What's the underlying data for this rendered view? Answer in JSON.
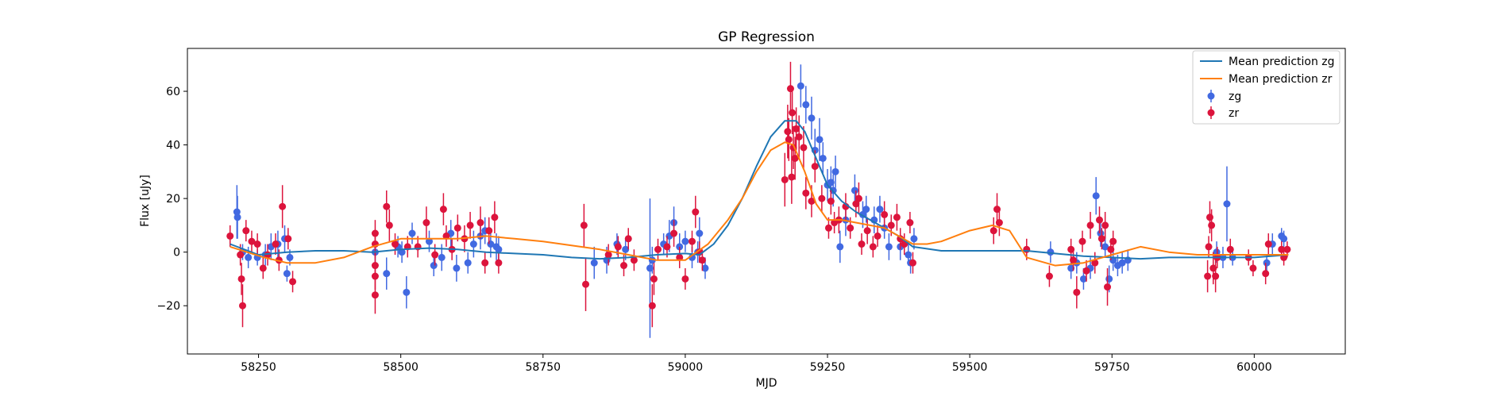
{
  "chart_data": {
    "type": "scatter",
    "title": "GP Regression",
    "xlabel": "MJD",
    "ylabel": "Flux [uJy]",
    "xlim": [
      58125,
      60160
    ],
    "ylim": [
      -38,
      76
    ],
    "xticks": [
      58250,
      58500,
      58750,
      59000,
      59250,
      59500,
      59750,
      60000
    ],
    "yticks": [
      -20,
      0,
      20,
      40,
      60
    ],
    "grid": false,
    "legend_position": "top-right",
    "colors": {
      "mean_zg": "#1f77b4",
      "mean_zr": "#ff7f0e",
      "zg": "#4169e1",
      "zr": "#dc143c"
    },
    "lines": [
      {
        "name": "Mean prediction zg",
        "color": "#1f77b4",
        "x": [
          58200,
          58250,
          58300,
          58350,
          58400,
          58450,
          58500,
          58550,
          58600,
          58650,
          58700,
          58750,
          58800,
          58850,
          58900,
          58950,
          59000,
          59025,
          59050,
          59075,
          59100,
          59125,
          59150,
          59175,
          59195,
          59210,
          59230,
          59250,
          59275,
          59300,
          59325,
          59350,
          59375,
          59400,
          59450,
          59500,
          59550,
          59600,
          59650,
          59700,
          59750,
          59800,
          59850,
          59900,
          59950,
          60000,
          60060
        ],
        "y": [
          3,
          -1,
          0,
          0.5,
          0.5,
          0,
          1,
          1.5,
          1,
          0,
          -0.5,
          -1,
          -2,
          -2.5,
          -2,
          -1,
          -0.5,
          -1,
          3,
          10,
          20,
          32,
          43,
          49,
          49,
          45,
          35,
          25,
          19,
          15,
          12,
          9,
          6,
          2,
          0.5,
          0.5,
          0.5,
          0.5,
          -0.5,
          -1.5,
          -2,
          -2.5,
          -2,
          -2,
          -2,
          -2,
          -1
        ]
      },
      {
        "name": "Mean prediction zr",
        "color": "#ff7f0e",
        "x": [
          58200,
          58230,
          58260,
          58300,
          58350,
          58400,
          58450,
          58500,
          58550,
          58600,
          58650,
          58700,
          58750,
          58800,
          58850,
          58900,
          58950,
          59000,
          59040,
          59075,
          59100,
          59125,
          59150,
          59175,
          59190,
          59210,
          59230,
          59250,
          59275,
          59300,
          59325,
          59350,
          59375,
          59400,
          59425,
          59450,
          59500,
          59540,
          59570,
          59600,
          59650,
          59700,
          59750,
          59800,
          59850,
          59900,
          59950,
          60000,
          60060
        ],
        "y": [
          2,
          0,
          -2,
          -4,
          -4,
          -2,
          2,
          5,
          5,
          5,
          6,
          5,
          4,
          2.5,
          1,
          -1,
          -3,
          -3,
          3,
          12,
          20,
          30,
          38,
          41,
          40,
          30,
          18,
          12,
          12,
          11,
          10,
          9,
          6,
          3,
          3,
          4,
          8,
          10,
          8,
          -2,
          -5,
          -4,
          -1,
          2,
          0,
          -1,
          -1,
          -1,
          -1
        ]
      }
    ],
    "series": [
      {
        "name": "zg",
        "color": "#4169e1",
        "points": [
          [
            58212,
            15,
            10
          ],
          [
            58213,
            13,
            8
          ],
          [
            58222,
            0,
            3
          ],
          [
            58232,
            -2,
            4
          ],
          [
            58248,
            -2,
            3
          ],
          [
            58262,
            -1,
            4
          ],
          [
            58272,
            2,
            5
          ],
          [
            58284,
            3,
            5
          ],
          [
            58296,
            5,
            5
          ],
          [
            58300,
            -8,
            3
          ],
          [
            58305,
            -2,
            3
          ],
          [
            58455,
            0,
            4
          ],
          [
            58475,
            -8,
            6
          ],
          [
            58495,
            2,
            4
          ],
          [
            58502,
            0,
            4
          ],
          [
            58510,
            -15,
            6
          ],
          [
            58520,
            7,
            4
          ],
          [
            58550,
            4,
            4
          ],
          [
            58558,
            -5,
            4
          ],
          [
            58572,
            -2,
            5
          ],
          [
            58588,
            7,
            5
          ],
          [
            58598,
            -6,
            5
          ],
          [
            58618,
            -4,
            4
          ],
          [
            58628,
            3,
            5
          ],
          [
            58640,
            6,
            5
          ],
          [
            58648,
            8,
            5
          ],
          [
            58658,
            3,
            5
          ],
          [
            58668,
            2,
            5
          ],
          [
            58672,
            1,
            5
          ],
          [
            58840,
            -4,
            6
          ],
          [
            58862,
            -3,
            5
          ],
          [
            58880,
            3,
            4
          ],
          [
            58895,
            1,
            4
          ],
          [
            58938,
            -6,
            26
          ],
          [
            58942,
            -3,
            5
          ],
          [
            58962,
            3,
            4
          ],
          [
            58972,
            6,
            6
          ],
          [
            58980,
            11,
            6
          ],
          [
            58990,
            2,
            5
          ],
          [
            59000,
            4,
            4
          ],
          [
            59012,
            -2,
            4
          ],
          [
            59022,
            0,
            4
          ],
          [
            59025,
            7,
            6
          ],
          [
            59035,
            -6,
            4
          ],
          [
            59203,
            62,
            8
          ],
          [
            59212,
            55,
            7
          ],
          [
            59222,
            50,
            8
          ],
          [
            59228,
            38,
            8
          ],
          [
            59236,
            42,
            8
          ],
          [
            59242,
            35,
            6
          ],
          [
            59250,
            25,
            6
          ],
          [
            59256,
            26,
            6
          ],
          [
            59260,
            23,
            6
          ],
          [
            59264,
            30,
            6
          ],
          [
            59272,
            2,
            6
          ],
          [
            59282,
            12,
            6
          ],
          [
            59298,
            23,
            6
          ],
          [
            59312,
            14,
            5
          ],
          [
            59318,
            16,
            5
          ],
          [
            59332,
            12,
            5
          ],
          [
            59342,
            16,
            5
          ],
          [
            59350,
            9,
            4
          ],
          [
            59358,
            2,
            5
          ],
          [
            59378,
            2,
            5
          ],
          [
            59392,
            -1,
            4
          ],
          [
            59396,
            -4,
            4
          ],
          [
            59402,
            5,
            4
          ],
          [
            59642,
            0,
            4
          ],
          [
            59678,
            -6,
            4
          ],
          [
            59688,
            -4,
            4
          ],
          [
            59700,
            -10,
            4
          ],
          [
            59712,
            -6,
            4
          ],
          [
            59722,
            21,
            7
          ],
          [
            59730,
            7,
            5
          ],
          [
            59738,
            2,
            4
          ],
          [
            59745,
            -10,
            5
          ],
          [
            59752,
            -3,
            4
          ],
          [
            59760,
            -5,
            4
          ],
          [
            59768,
            -4,
            4
          ],
          [
            59778,
            -3,
            4
          ],
          [
            59934,
            0,
            4
          ],
          [
            59945,
            -2,
            4
          ],
          [
            59952,
            18,
            14
          ],
          [
            59962,
            -2,
            3
          ],
          [
            60022,
            -4,
            3
          ],
          [
            60032,
            3,
            4
          ],
          [
            60048,
            6,
            3
          ],
          [
            60052,
            5,
            3
          ]
        ]
      },
      {
        "name": "zr",
        "color": "#dc143c",
        "points": [
          [
            58200,
            6,
            4
          ],
          [
            58218,
            -1,
            4
          ],
          [
            58222,
            -20,
            8
          ],
          [
            58220,
            -10,
            6
          ],
          [
            58228,
            8,
            4
          ],
          [
            58238,
            4,
            4
          ],
          [
            58248,
            3,
            4
          ],
          [
            58258,
            -6,
            4
          ],
          [
            58266,
            -1,
            4
          ],
          [
            58280,
            3,
            4
          ],
          [
            58286,
            -3,
            4
          ],
          [
            58292,
            17,
            8
          ],
          [
            58302,
            5,
            4
          ],
          [
            58310,
            -11,
            4
          ],
          [
            58455,
            7,
            5
          ],
          [
            58455,
            3,
            5
          ],
          [
            58455,
            -5,
            5
          ],
          [
            58455,
            -9,
            5
          ],
          [
            58455,
            -16,
            7
          ],
          [
            58475,
            17,
            6
          ],
          [
            58480,
            10,
            6
          ],
          [
            58490,
            3,
            4
          ],
          [
            58512,
            2,
            4
          ],
          [
            58530,
            2,
            4
          ],
          [
            58545,
            11,
            6
          ],
          [
            58560,
            -1,
            4
          ],
          [
            58575,
            16,
            6
          ],
          [
            58580,
            6,
            4
          ],
          [
            58590,
            1,
            4
          ],
          [
            58600,
            9,
            5
          ],
          [
            58612,
            5,
            5
          ],
          [
            58622,
            10,
            5
          ],
          [
            58640,
            11,
            6
          ],
          [
            58648,
            -4,
            4
          ],
          [
            58655,
            8,
            5
          ],
          [
            58665,
            13,
            6
          ],
          [
            58672,
            -4,
            4
          ],
          [
            58822,
            10,
            8
          ],
          [
            58825,
            -12,
            10
          ],
          [
            58865,
            -1,
            4
          ],
          [
            58882,
            2,
            4
          ],
          [
            58892,
            -5,
            4
          ],
          [
            58900,
            5,
            4
          ],
          [
            58910,
            -3,
            4
          ],
          [
            58942,
            -20,
            8
          ],
          [
            58945,
            -10,
            6
          ],
          [
            58952,
            1,
            4
          ],
          [
            58968,
            2,
            4
          ],
          [
            58980,
            7,
            5
          ],
          [
            58990,
            -2,
            4
          ],
          [
            59000,
            -10,
            4
          ],
          [
            59012,
            4,
            4
          ],
          [
            59018,
            15,
            6
          ],
          [
            59025,
            0,
            4
          ],
          [
            59030,
            -3,
            4
          ],
          [
            59175,
            27,
            10
          ],
          [
            59180,
            45,
            10
          ],
          [
            59182,
            42,
            8
          ],
          [
            59185,
            61,
            10
          ],
          [
            59187,
            28,
            10
          ],
          [
            59188,
            52,
            8
          ],
          [
            59190,
            39,
            8
          ],
          [
            59193,
            35,
            8
          ],
          [
            59195,
            46,
            8
          ],
          [
            59200,
            43,
            8
          ],
          [
            59208,
            39,
            8
          ],
          [
            59212,
            22,
            6
          ],
          [
            59222,
            19,
            6
          ],
          [
            59228,
            32,
            6
          ],
          [
            59240,
            20,
            5
          ],
          [
            59252,
            9,
            4
          ],
          [
            59256,
            19,
            5
          ],
          [
            59262,
            11,
            4
          ],
          [
            59270,
            12,
            5
          ],
          [
            59282,
            17,
            5
          ],
          [
            59290,
            9,
            4
          ],
          [
            59300,
            18,
            5
          ],
          [
            59305,
            20,
            6
          ],
          [
            59310,
            3,
            4
          ],
          [
            59320,
            8,
            5
          ],
          [
            59330,
            2,
            4
          ],
          [
            59338,
            6,
            4
          ],
          [
            59350,
            14,
            5
          ],
          [
            59362,
            10,
            4
          ],
          [
            59372,
            13,
            5
          ],
          [
            59378,
            5,
            4
          ],
          [
            59385,
            3,
            4
          ],
          [
            59395,
            11,
            4
          ],
          [
            59400,
            -4,
            4
          ],
          [
            59542,
            8,
            5
          ],
          [
            59548,
            16,
            6
          ],
          [
            59552,
            11,
            5
          ],
          [
            59600,
            1,
            4
          ],
          [
            59640,
            -9,
            4
          ],
          [
            59678,
            1,
            4
          ],
          [
            59682,
            -3,
            4
          ],
          [
            59688,
            -15,
            6
          ],
          [
            59698,
            4,
            4
          ],
          [
            59705,
            -7,
            4
          ],
          [
            59712,
            10,
            5
          ],
          [
            59720,
            -4,
            4
          ],
          [
            59728,
            12,
            5
          ],
          [
            59732,
            5,
            4
          ],
          [
            59738,
            10,
            5
          ],
          [
            59742,
            -13,
            7
          ],
          [
            59748,
            1,
            4
          ],
          [
            59752,
            4,
            4
          ],
          [
            59918,
            -9,
            6
          ],
          [
            59920,
            2,
            4
          ],
          [
            59922,
            13,
            6
          ],
          [
            59925,
            10,
            6
          ],
          [
            59928,
            -6,
            6
          ],
          [
            59932,
            -9,
            6
          ],
          [
            59935,
            -2,
            4
          ],
          [
            59958,
            1,
            4
          ],
          [
            59990,
            -2,
            3
          ],
          [
            59998,
            -6,
            3
          ],
          [
            60020,
            -8,
            4
          ],
          [
            60025,
            3,
            4
          ],
          [
            60048,
            1,
            3
          ],
          [
            60052,
            -2,
            3
          ],
          [
            60058,
            1,
            3
          ]
        ]
      }
    ]
  }
}
